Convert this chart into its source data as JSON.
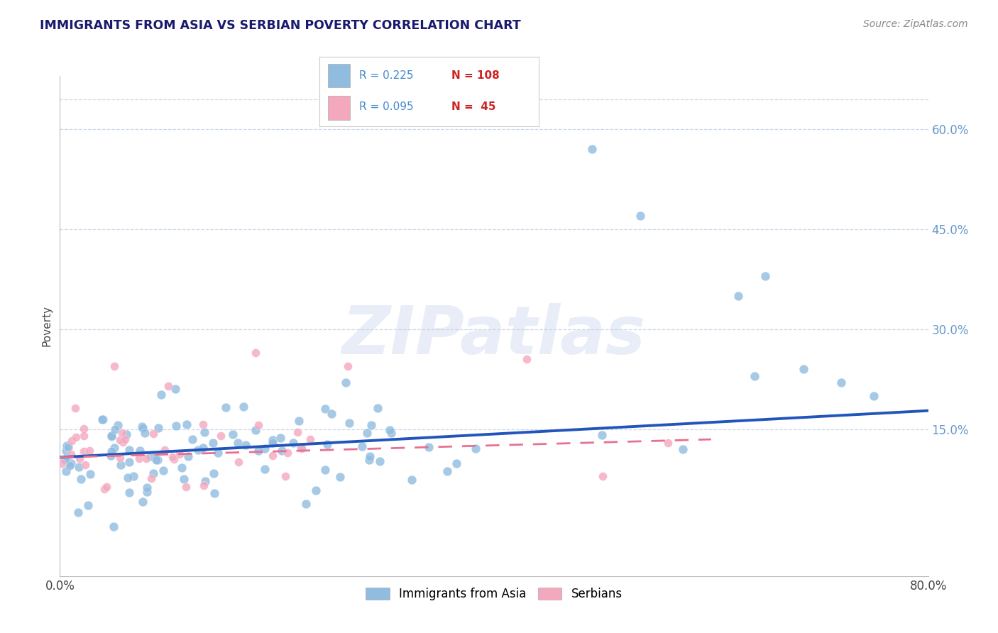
{
  "title": "IMMIGRANTS FROM ASIA VS SERBIAN POVERTY CORRELATION CHART",
  "source": "Source: ZipAtlas.com",
  "xlabel_bottom_left": "0.0%",
  "xlabel_bottom_right": "80.0%",
  "ylabel": "Poverty",
  "ytick_labels": [
    "15.0%",
    "30.0%",
    "45.0%",
    "60.0%"
  ],
  "ytick_values": [
    0.15,
    0.3,
    0.45,
    0.6
  ],
  "xlim": [
    0.0,
    0.8
  ],
  "ylim": [
    -0.07,
    0.68
  ],
  "blue_R": 0.225,
  "blue_N": 108,
  "pink_R": 0.095,
  "pink_N": 45,
  "blue_color": "#90bce0",
  "pink_color": "#f4a8be",
  "blue_line_color": "#2255bb",
  "pink_line_color": "#e87090",
  "legend_label_blue": "Immigrants from Asia",
  "legend_label_pink": "Serbians",
  "watermark_text": "ZIPatlas",
  "background_color": "#ffffff",
  "grid_color": "#c8d8e8",
  "title_color": "#1a1a6e",
  "axis_tick_color": "#6699cc",
  "blue_trend_x": [
    0.0,
    0.8
  ],
  "blue_trend_y": [
    0.108,
    0.178
  ],
  "pink_trend_x": [
    0.0,
    0.6
  ],
  "pink_trend_y": [
    0.108,
    0.135
  ],
  "legend_R_color": "#4488cc",
  "legend_N_color": "#cc2222"
}
